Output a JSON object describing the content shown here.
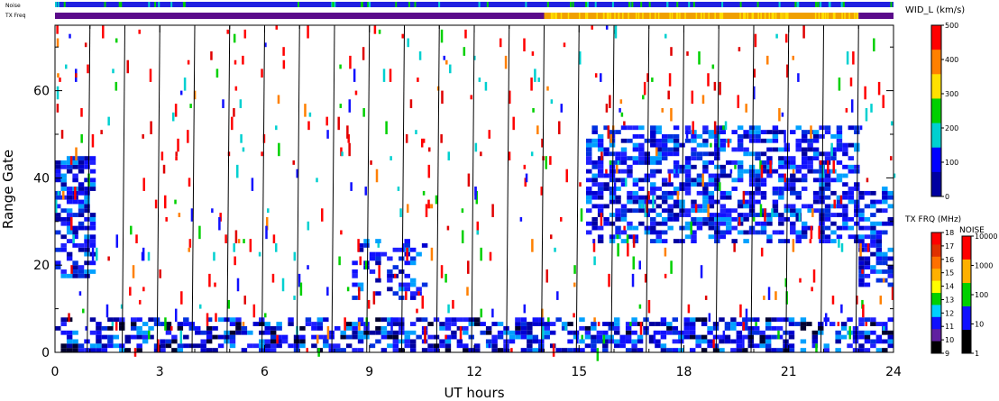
{
  "chart_data": {
    "type": "heatmap",
    "xlabel": "UT hours",
    "ylabel": "Range Gate",
    "xlim": [
      0,
      24
    ],
    "ylim": [
      0,
      75
    ],
    "x_ticks": [
      "0",
      "3",
      "6",
      "9",
      "12",
      "15",
      "18",
      "21",
      "24"
    ],
    "x_tick_values": [
      0,
      3,
      6,
      9,
      12,
      15,
      18,
      21,
      24
    ],
    "y_ticks": [
      "0",
      "20",
      "40",
      "60"
    ],
    "y_tick_values": [
      0,
      20,
      40,
      60
    ],
    "scan_boundaries_ut": [
      1,
      2,
      3,
      4,
      5,
      6,
      7,
      8,
      9,
      10,
      11,
      12,
      13,
      14,
      15,
      16,
      17,
      18,
      19,
      20,
      21,
      22,
      23
    ],
    "strip_labels": {
      "noise": "Noise",
      "txfreq": "TX Freq"
    },
    "txfreq_strip": [
      {
        "from": 0,
        "to": 14,
        "color": "#5a0a8a"
      },
      {
        "from": 14,
        "to": 23,
        "color": "#f0a000"
      },
      {
        "from": 23,
        "to": 24,
        "color": "#5a0a8a"
      }
    ],
    "noise_strip_color": "#2020e0",
    "colorbar_width": {
      "title": "WID_L (km/s)",
      "ticks": [
        "500",
        "400",
        "300",
        "200",
        "100",
        "0"
      ],
      "colors": [
        "#ff0000",
        "#ff8000",
        "#ffe000",
        "#00d000",
        "#00d0d0",
        "#0000ff",
        "#0000a0"
      ]
    },
    "colorbar_txfreq": {
      "title": "TX FRQ (MHz)",
      "ticks": [
        "18",
        "17",
        "16",
        "15",
        "14",
        "13",
        "12",
        "11",
        "10",
        "9"
      ],
      "colors": [
        "#ff0000",
        "#e03000",
        "#ff7000",
        "#ffb000",
        "#ffff00",
        "#00d000",
        "#00d0ff",
        "#1010ff",
        "#6020a0",
        "#000000"
      ]
    },
    "colorbar_noise": {
      "title": "NOISE",
      "ticks": [
        "10000",
        "1000",
        "100",
        "10",
        "1"
      ],
      "colors": [
        "#ff0000",
        "#ffb000",
        "#00d000",
        "#1010ff",
        "#000000"
      ]
    },
    "regions": [
      {
        "name": "near-range band",
        "x": [
          0,
          24
        ],
        "y": [
          0,
          8
        ],
        "density": 0.55,
        "color": "blue"
      },
      {
        "name": "early cluster",
        "x": [
          0,
          1
        ],
        "y": [
          17,
          45
        ],
        "density": 0.6,
        "color": "blue"
      },
      {
        "name": "mid cluster",
        "x": [
          8.5,
          10.5
        ],
        "y": [
          12,
          26
        ],
        "density": 0.3,
        "color": "blue"
      },
      {
        "name": "evening band",
        "x": [
          15.2,
          23
        ],
        "y": [
          25,
          52
        ],
        "density": 0.55,
        "color": "blue"
      },
      {
        "name": "late cluster",
        "x": [
          23,
          24
        ],
        "y": [
          15,
          38
        ],
        "density": 0.6,
        "color": "blue"
      }
    ]
  }
}
